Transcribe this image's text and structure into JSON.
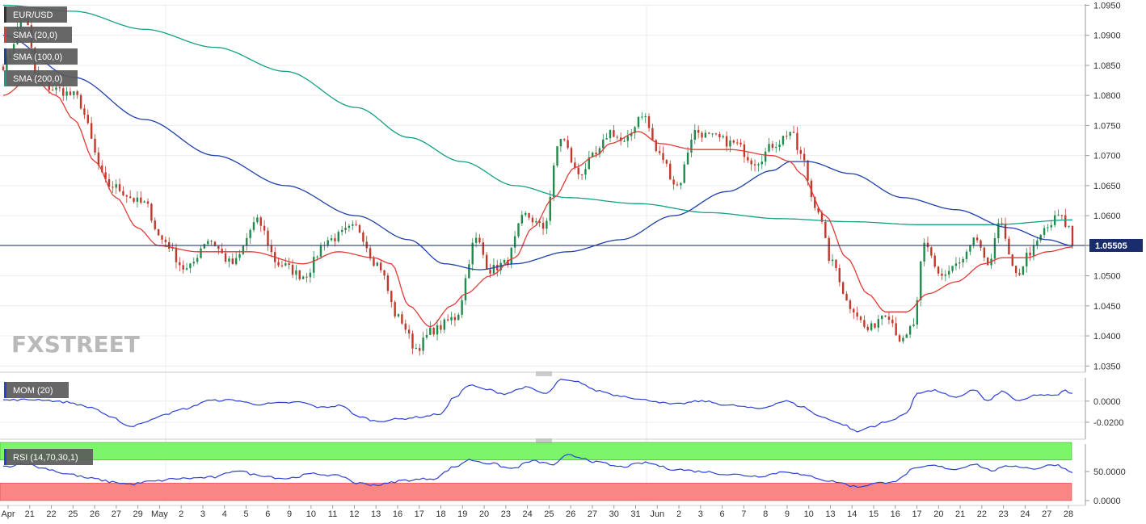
{
  "chart_data": [
    {
      "type": "candlestick",
      "symbol": "EUR/USD",
      "legend": [
        {
          "name": "EUR/USD",
          "color": "#333333"
        },
        {
          "name": "SMA (20,0)",
          "color": "#e53935"
        },
        {
          "name": "SMA (100,0)",
          "color": "#1e40a8"
        },
        {
          "name": "SMA (200,0)",
          "color": "#13a085"
        }
      ],
      "y_ticks": [
        "1.0950",
        "1.0900",
        "1.0850",
        "1.0800",
        "1.0750",
        "1.0700",
        "1.0650",
        "1.0600",
        "1.0550",
        "1.0500",
        "1.0450",
        "1.0400",
        "1.0350"
      ],
      "ylim": [
        1.0345,
        1.0952
      ],
      "current_price": 1.05505,
      "current_price_label": "1.05505",
      "x_labels": [
        "Apr",
        "21",
        "22",
        "25",
        "26",
        "27",
        "29",
        "May",
        "2",
        "3",
        "4",
        "5",
        "6",
        "9",
        "10",
        "11",
        "12",
        "13",
        "16",
        "17",
        "18",
        "19",
        "20",
        "23",
        "24",
        "25",
        "26",
        "27",
        "30",
        "31",
        "Jun",
        "2",
        "3",
        "6",
        "7",
        "8",
        "9",
        "10",
        "13",
        "14",
        "15",
        "16",
        "17",
        "20",
        "21",
        "22",
        "23",
        "24",
        "27",
        "28"
      ],
      "close_anchors": [
        [
          0,
          1.085
        ],
        [
          6,
          1.093
        ],
        [
          10,
          1.082
        ],
        [
          15,
          1.081
        ],
        [
          20,
          1.08
        ],
        [
          30,
          1.065
        ],
        [
          40,
          1.062
        ],
        [
          45,
          1.056
        ],
        [
          52,
          1.051
        ],
        [
          58,
          1.056
        ],
        [
          65,
          1.052
        ],
        [
          72,
          1.059
        ],
        [
          78,
          1.052
        ],
        [
          85,
          1.05
        ],
        [
          92,
          1.056
        ],
        [
          100,
          1.058
        ],
        [
          106,
          1.052
        ],
        [
          112,
          1.043
        ],
        [
          117,
          1.038
        ],
        [
          122,
          1.041
        ],
        [
          128,
          1.043
        ],
        [
          134,
          1.056
        ],
        [
          138,
          1.051
        ],
        [
          142,
          1.052
        ],
        [
          148,
          1.06
        ],
        [
          153,
          1.058
        ],
        [
          158,
          1.073
        ],
        [
          163,
          1.067
        ],
        [
          168,
          1.07
        ],
        [
          172,
          1.074
        ],
        [
          176,
          1.072
        ],
        [
          181,
          1.077
        ],
        [
          186,
          1.07
        ],
        [
          191,
          1.065
        ],
        [
          196,
          1.074
        ],
        [
          201,
          1.073
        ],
        [
          207,
          1.072
        ],
        [
          213,
          1.069
        ],
        [
          219,
          1.072
        ],
        [
          223,
          1.074
        ],
        [
          226,
          1.07
        ],
        [
          230,
          1.062
        ],
        [
          235,
          1.052
        ],
        [
          240,
          1.045
        ],
        [
          245,
          1.041
        ],
        [
          250,
          1.044
        ],
        [
          255,
          1.039
        ],
        [
          258,
          1.042
        ],
        [
          261,
          1.055
        ],
        [
          266,
          1.05
        ],
        [
          271,
          1.052
        ],
        [
          276,
          1.056
        ],
        [
          279,
          1.051
        ],
        [
          282,
          1.059
        ],
        [
          287,
          1.05
        ],
        [
          291,
          1.054
        ],
        [
          296,
          1.058
        ],
        [
          299,
          1.06
        ],
        [
          302,
          1.058
        ],
        [
          303,
          1.0551
        ]
      ],
      "sma20_anchors": [
        [
          0,
          1.08
        ],
        [
          8,
          1.083
        ],
        [
          15,
          1.08
        ],
        [
          20,
          1.076
        ],
        [
          26,
          1.069
        ],
        [
          32,
          1.063
        ],
        [
          38,
          1.058
        ],
        [
          44,
          1.055
        ],
        [
          55,
          1.054
        ],
        [
          70,
          1.054
        ],
        [
          85,
          1.052
        ],
        [
          95,
          1.054
        ],
        [
          105,
          1.053
        ],
        [
          110,
          1.052
        ],
        [
          115,
          1.045
        ],
        [
          121,
          1.0415
        ],
        [
          127,
          1.045
        ],
        [
          131,
          1.047
        ],
        [
          138,
          1.05
        ],
        [
          145,
          1.053
        ],
        [
          150,
          1.058
        ],
        [
          156,
          1.063
        ],
        [
          162,
          1.068
        ],
        [
          168,
          1.07
        ],
        [
          172,
          1.072
        ],
        [
          180,
          1.074
        ],
        [
          186,
          1.072
        ],
        [
          196,
          1.071
        ],
        [
          206,
          1.071
        ],
        [
          218,
          1.07
        ],
        [
          223,
          1.069
        ],
        [
          226,
          1.067
        ],
        [
          233,
          1.06
        ],
        [
          239,
          1.053
        ],
        [
          245,
          1.047
        ],
        [
          250,
          1.044
        ],
        [
          256,
          1.044
        ],
        [
          262,
          1.047
        ],
        [
          270,
          1.049
        ],
        [
          278,
          1.052
        ],
        [
          283,
          1.053
        ],
        [
          290,
          1.053
        ],
        [
          296,
          1.054
        ],
        [
          303,
          1.0548
        ]
      ],
      "sma100_anchors": [
        [
          0,
          1.09
        ],
        [
          20,
          1.083
        ],
        [
          40,
          1.076
        ],
        [
          60,
          1.07
        ],
        [
          80,
          1.065
        ],
        [
          100,
          1.06
        ],
        [
          115,
          1.056
        ],
        [
          125,
          1.052
        ],
        [
          135,
          1.051
        ],
        [
          145,
          1.052
        ],
        [
          160,
          1.054
        ],
        [
          175,
          1.056
        ],
        [
          190,
          1.06
        ],
        [
          205,
          1.064
        ],
        [
          218,
          1.0675
        ],
        [
          223,
          1.069
        ],
        [
          228,
          1.069
        ],
        [
          240,
          1.067
        ],
        [
          255,
          1.063
        ],
        [
          270,
          1.061
        ],
        [
          285,
          1.058
        ],
        [
          296,
          1.056
        ],
        [
          303,
          1.055
        ]
      ],
      "sma200_anchors": [
        [
          0,
          1.095
        ],
        [
          20,
          1.094
        ],
        [
          40,
          1.091
        ],
        [
          60,
          1.088
        ],
        [
          80,
          1.084
        ],
        [
          100,
          1.078
        ],
        [
          115,
          1.073
        ],
        [
          130,
          1.069
        ],
        [
          145,
          1.065
        ],
        [
          160,
          1.063
        ],
        [
          180,
          1.062
        ],
        [
          200,
          1.0605
        ],
        [
          220,
          1.0595
        ],
        [
          240,
          1.059
        ],
        [
          260,
          1.0585
        ],
        [
          280,
          1.0585
        ],
        [
          303,
          1.0593
        ]
      ]
    },
    {
      "type": "line",
      "name": "MOM (20)",
      "y_ticks": [
        "0.0000",
        "-0.0200"
      ],
      "ylim": [
        -0.033,
        0.022
      ],
      "values_anchors": [
        [
          0,
          0.001
        ],
        [
          10,
          0.0015
        ],
        [
          18,
          -0.001
        ],
        [
          25,
          -0.006
        ],
        [
          31,
          -0.016
        ],
        [
          36,
          -0.024
        ],
        [
          40,
          -0.02
        ],
        [
          46,
          -0.012
        ],
        [
          52,
          -0.007
        ],
        [
          58,
          0.0005
        ],
        [
          65,
          0.001
        ],
        [
          72,
          -0.003
        ],
        [
          78,
          -0.002
        ],
        [
          84,
          -0.001
        ],
        [
          90,
          -0.006
        ],
        [
          96,
          -0.004
        ],
        [
          100,
          -0.014
        ],
        [
          106,
          -0.019
        ],
        [
          112,
          -0.017
        ],
        [
          118,
          -0.015
        ],
        [
          124,
          -0.012
        ],
        [
          128,
          0.004
        ],
        [
          132,
          0.015
        ],
        [
          137,
          0.011
        ],
        [
          142,
          0.007
        ],
        [
          148,
          0.013
        ],
        [
          154,
          0.007
        ],
        [
          158,
          0.02
        ],
        [
          163,
          0.018
        ],
        [
          168,
          0.01
        ],
        [
          175,
          0.005
        ],
        [
          182,
          0.001
        ],
        [
          190,
          -0.003
        ],
        [
          198,
          0.0
        ],
        [
          206,
          -0.004
        ],
        [
          214,
          -0.007
        ],
        [
          222,
          0.0
        ],
        [
          226,
          -0.005
        ],
        [
          232,
          -0.015
        ],
        [
          238,
          -0.022
        ],
        [
          242,
          -0.029
        ],
        [
          246,
          -0.024
        ],
        [
          250,
          -0.02
        ],
        [
          256,
          -0.012
        ],
        [
          259,
          0.008
        ],
        [
          264,
          0.01
        ],
        [
          270,
          0.003
        ],
        [
          275,
          0.011
        ],
        [
          279,
          0.0
        ],
        [
          283,
          0.009
        ],
        [
          288,
          0.0
        ],
        [
          293,
          0.006
        ],
        [
          298,
          0.005
        ],
        [
          301,
          0.01
        ],
        [
          303,
          0.007
        ]
      ]
    },
    {
      "type": "line",
      "name": "RSI (14,70,30,1)",
      "y_ticks": [
        "50.0000",
        "0.0000"
      ],
      "ylim": [
        0,
        100
      ],
      "overbought": 70,
      "oversold": 30,
      "values_anchors": [
        [
          0,
          58
        ],
        [
          6,
          64
        ],
        [
          12,
          55
        ],
        [
          18,
          46
        ],
        [
          25,
          38
        ],
        [
          31,
          32
        ],
        [
          36,
          28
        ],
        [
          42,
          33
        ],
        [
          50,
          38
        ],
        [
          60,
          40
        ],
        [
          66,
          52
        ],
        [
          72,
          44
        ],
        [
          80,
          38
        ],
        [
          88,
          46
        ],
        [
          96,
          42
        ],
        [
          100,
          30
        ],
        [
          106,
          27
        ],
        [
          114,
          35
        ],
        [
          122,
          38
        ],
        [
          128,
          58
        ],
        [
          132,
          70
        ],
        [
          138,
          64
        ],
        [
          144,
          55
        ],
        [
          150,
          68
        ],
        [
          156,
          62
        ],
        [
          160,
          78
        ],
        [
          164,
          74
        ],
        [
          168,
          66
        ],
        [
          175,
          58
        ],
        [
          182,
          65
        ],
        [
          190,
          54
        ],
        [
          198,
          50
        ],
        [
          206,
          45
        ],
        [
          214,
          42
        ],
        [
          222,
          50
        ],
        [
          228,
          42
        ],
        [
          235,
          33
        ],
        [
          242,
          24
        ],
        [
          248,
          30
        ],
        [
          253,
          34
        ],
        [
          258,
          54
        ],
        [
          263,
          60
        ],
        [
          270,
          54
        ],
        [
          275,
          63
        ],
        [
          280,
          52
        ],
        [
          286,
          60
        ],
        [
          292,
          55
        ],
        [
          298,
          62
        ],
        [
          303,
          50
        ]
      ]
    }
  ],
  "watermark": "FXSTREET"
}
